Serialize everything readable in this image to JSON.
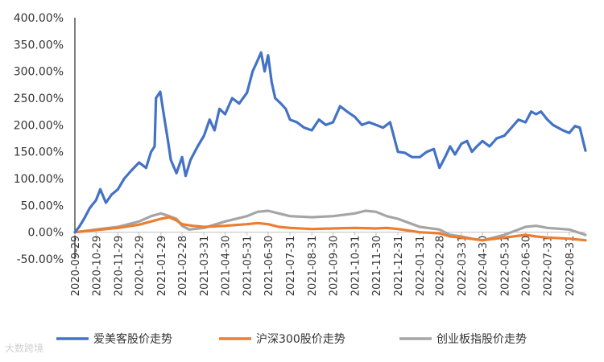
{
  "chart_data": {
    "type": "line",
    "title": "",
    "xlabel": "",
    "ylabel": "",
    "ylim": [
      -50,
      400
    ],
    "y_ticks": [
      "400.00%",
      "350.00%",
      "300.00%",
      "250.00%",
      "200.00%",
      "150.00%",
      "100.00%",
      "50.00%",
      "0.00%",
      "-50.00%"
    ],
    "y_tick_values": [
      400,
      350,
      300,
      250,
      200,
      150,
      100,
      50,
      0,
      -50
    ],
    "x_ticks": [
      "2020-09-29",
      "2020-10-29",
      "2020-11-29",
      "2020-12-29",
      "2021-01-29",
      "2021-02-28",
      "2021-03-31",
      "2021-04-30",
      "2021-05-31",
      "2021-06-30",
      "2021-07-31",
      "2021-08-31",
      "2021-09-30",
      "2021-10-31",
      "2021-11-30",
      "2021-12-31",
      "2022-01-31",
      "2022-02-28",
      "2022-03-31",
      "2022-04-30",
      "2022-05-31",
      "2022-06-30",
      "2022-07-31",
      "2022-08-31"
    ],
    "x_range": [
      "2020-09-29",
      "2022-09-23"
    ],
    "legend_position": "bottom",
    "grid": false,
    "series": [
      {
        "name": "爱美客股价走势",
        "color": "#4472c4",
        "points": [
          [
            "2020-09-29",
            0
          ],
          [
            "2020-10-05",
            10
          ],
          [
            "2020-10-12",
            25
          ],
          [
            "2020-10-20",
            45
          ],
          [
            "2020-10-29",
            60
          ],
          [
            "2020-11-04",
            80
          ],
          [
            "2020-11-12",
            55
          ],
          [
            "2020-11-20",
            70
          ],
          [
            "2020-11-29",
            80
          ],
          [
            "2020-12-08",
            100
          ],
          [
            "2020-12-18",
            115
          ],
          [
            "2020-12-29",
            130
          ],
          [
            "2021-01-08",
            120
          ],
          [
            "2021-01-15",
            150
          ],
          [
            "2021-01-20",
            160
          ],
          [
            "2021-01-22",
            250
          ],
          [
            "2021-01-28",
            262
          ],
          [
            "2021-02-02",
            220
          ],
          [
            "2021-02-08",
            170
          ],
          [
            "2021-02-12",
            135
          ],
          [
            "2021-02-20",
            110
          ],
          [
            "2021-02-28",
            140
          ],
          [
            "2021-03-05",
            105
          ],
          [
            "2021-03-12",
            135
          ],
          [
            "2021-03-22",
            160
          ],
          [
            "2021-03-31",
            180
          ],
          [
            "2021-04-08",
            210
          ],
          [
            "2021-04-15",
            190
          ],
          [
            "2021-04-22",
            230
          ],
          [
            "2021-04-30",
            220
          ],
          [
            "2021-05-10",
            250
          ],
          [
            "2021-05-20",
            240
          ],
          [
            "2021-05-31",
            260
          ],
          [
            "2021-06-08",
            300
          ],
          [
            "2021-06-15",
            320
          ],
          [
            "2021-06-20",
            335
          ],
          [
            "2021-06-25",
            300
          ],
          [
            "2021-06-30",
            330
          ],
          [
            "2021-07-05",
            280
          ],
          [
            "2021-07-10",
            250
          ],
          [
            "2021-07-18",
            240
          ],
          [
            "2021-07-25",
            230
          ],
          [
            "2021-07-31",
            210
          ],
          [
            "2021-08-10",
            205
          ],
          [
            "2021-08-20",
            195
          ],
          [
            "2021-08-31",
            190
          ],
          [
            "2021-09-10",
            210
          ],
          [
            "2021-09-20",
            200
          ],
          [
            "2021-09-30",
            205
          ],
          [
            "2021-10-10",
            235
          ],
          [
            "2021-10-20",
            225
          ],
          [
            "2021-10-31",
            215
          ],
          [
            "2021-11-10",
            200
          ],
          [
            "2021-11-20",
            205
          ],
          [
            "2021-11-30",
            200
          ],
          [
            "2021-12-10",
            195
          ],
          [
            "2021-12-20",
            205
          ],
          [
            "2021-12-31",
            150
          ],
          [
            "2022-01-10",
            148
          ],
          [
            "2022-01-20",
            140
          ],
          [
            "2022-01-31",
            140
          ],
          [
            "2022-02-10",
            150
          ],
          [
            "2022-02-20",
            155
          ],
          [
            "2022-02-28",
            120
          ],
          [
            "2022-03-08",
            140
          ],
          [
            "2022-03-15",
            160
          ],
          [
            "2022-03-22",
            145
          ],
          [
            "2022-03-31",
            165
          ],
          [
            "2022-04-08",
            170
          ],
          [
            "2022-04-15",
            150
          ],
          [
            "2022-04-22",
            160
          ],
          [
            "2022-04-30",
            170
          ],
          [
            "2022-05-10",
            160
          ],
          [
            "2022-05-20",
            175
          ],
          [
            "2022-05-31",
            180
          ],
          [
            "2022-06-10",
            195
          ],
          [
            "2022-06-20",
            210
          ],
          [
            "2022-06-30",
            205
          ],
          [
            "2022-07-08",
            225
          ],
          [
            "2022-07-15",
            220
          ],
          [
            "2022-07-22",
            225
          ],
          [
            "2022-07-31",
            210
          ],
          [
            "2022-08-08",
            200
          ],
          [
            "2022-08-15",
            195
          ],
          [
            "2022-08-22",
            190
          ],
          [
            "2022-08-31",
            185
          ],
          [
            "2022-09-08",
            198
          ],
          [
            "2022-09-15",
            195
          ],
          [
            "2022-09-23",
            152
          ]
        ]
      },
      {
        "name": "沪深300股价走势",
        "color": "#ed7d31",
        "points": [
          [
            "2020-09-29",
            0
          ],
          [
            "2020-10-29",
            4
          ],
          [
            "2020-11-29",
            8
          ],
          [
            "2020-12-29",
            14
          ],
          [
            "2021-01-15",
            20
          ],
          [
            "2021-01-29",
            25
          ],
          [
            "2021-02-10",
            28
          ],
          [
            "2021-02-20",
            22
          ],
          [
            "2021-02-28",
            15
          ],
          [
            "2021-03-15",
            12
          ],
          [
            "2021-03-31",
            10
          ],
          [
            "2021-04-30",
            12
          ],
          [
            "2021-05-31",
            15
          ],
          [
            "2021-06-15",
            17
          ],
          [
            "2021-06-30",
            15
          ],
          [
            "2021-07-15",
            10
          ],
          [
            "2021-07-31",
            8
          ],
          [
            "2021-08-31",
            6
          ],
          [
            "2021-09-30",
            7
          ],
          [
            "2021-10-31",
            8
          ],
          [
            "2021-11-30",
            7
          ],
          [
            "2021-12-15",
            8
          ],
          [
            "2021-12-31",
            6
          ],
          [
            "2022-01-31",
            0
          ],
          [
            "2022-02-28",
            -2
          ],
          [
            "2022-03-15",
            -8
          ],
          [
            "2022-03-31",
            -10
          ],
          [
            "2022-04-30",
            -15
          ],
          [
            "2022-05-31",
            -10
          ],
          [
            "2022-06-30",
            -5
          ],
          [
            "2022-07-15",
            -8
          ],
          [
            "2022-07-31",
            -10
          ],
          [
            "2022-08-31",
            -12
          ],
          [
            "2022-09-23",
            -15
          ]
        ]
      },
      {
        "name": "创业板指股价走势",
        "color": "#a5a5a5",
        "points": [
          [
            "2020-09-29",
            0
          ],
          [
            "2020-10-29",
            5
          ],
          [
            "2020-11-29",
            10
          ],
          [
            "2020-12-29",
            20
          ],
          [
            "2021-01-15",
            30
          ],
          [
            "2021-01-29",
            35
          ],
          [
            "2021-02-10",
            30
          ],
          [
            "2021-02-20",
            25
          ],
          [
            "2021-02-28",
            12
          ],
          [
            "2021-03-10",
            5
          ],
          [
            "2021-03-31",
            8
          ],
          [
            "2021-04-30",
            20
          ],
          [
            "2021-05-31",
            30
          ],
          [
            "2021-06-15",
            38
          ],
          [
            "2021-06-30",
            40
          ],
          [
            "2021-07-15",
            35
          ],
          [
            "2021-07-31",
            30
          ],
          [
            "2021-08-31",
            28
          ],
          [
            "2021-09-30",
            30
          ],
          [
            "2021-10-31",
            35
          ],
          [
            "2021-11-15",
            40
          ],
          [
            "2021-11-30",
            38
          ],
          [
            "2021-12-15",
            30
          ],
          [
            "2021-12-31",
            25
          ],
          [
            "2022-01-31",
            10
          ],
          [
            "2022-02-28",
            5
          ],
          [
            "2022-03-15",
            -5
          ],
          [
            "2022-03-31",
            -8
          ],
          [
            "2022-04-15",
            -12
          ],
          [
            "2022-04-30",
            -15
          ],
          [
            "2022-05-31",
            -5
          ],
          [
            "2022-06-30",
            10
          ],
          [
            "2022-07-15",
            12
          ],
          [
            "2022-07-31",
            8
          ],
          [
            "2022-08-31",
            5
          ],
          [
            "2022-09-23",
            -5
          ]
        ]
      }
    ]
  },
  "watermark": "大数跨境"
}
